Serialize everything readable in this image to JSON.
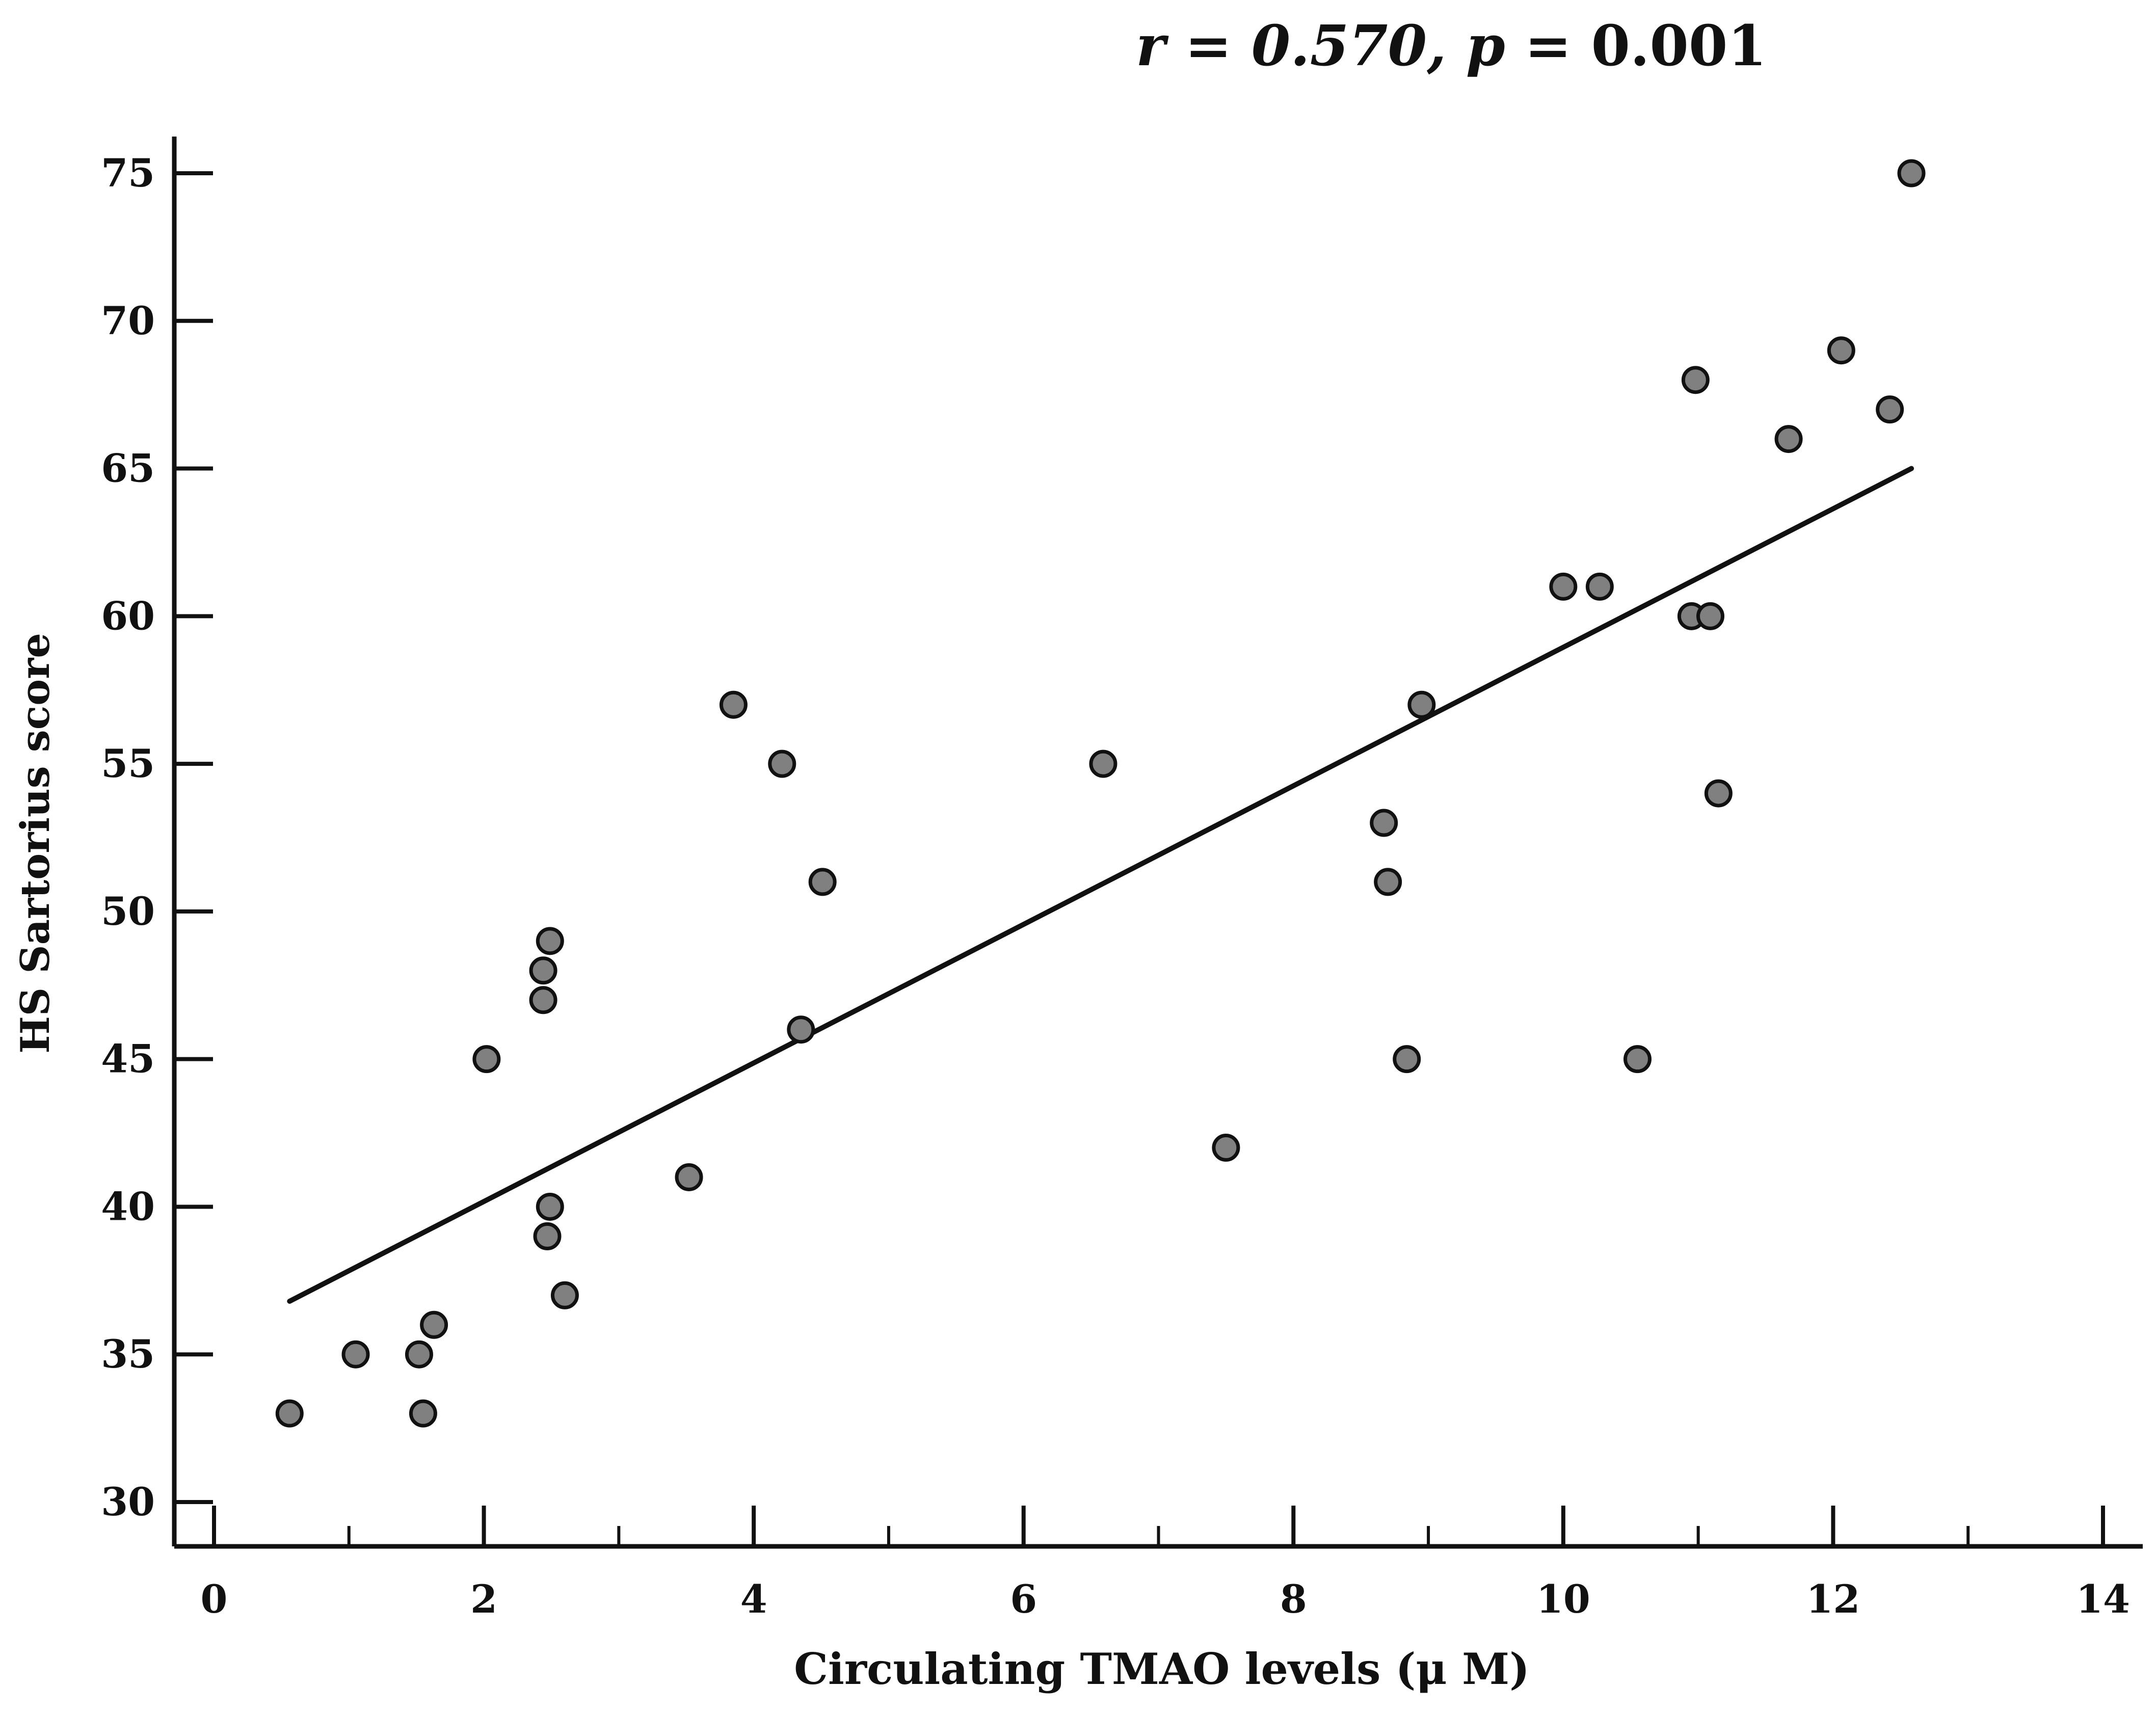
{
  "chart_data": {
    "type": "scatter",
    "title": "",
    "stats": {
      "r_label": "r",
      "r_value": "0.570",
      "p_label": "p",
      "p_value": "0.001"
    },
    "xlabel": "Circulating TMAO levels (μ M)",
    "ylabel": "HS Sartorius score",
    "xlim": [
      0,
      14
    ],
    "ylim": [
      30,
      75
    ],
    "x_ticks": [
      0,
      2,
      4,
      6,
      8,
      10,
      12,
      14
    ],
    "x_minor_ticks": [
      1,
      3,
      5,
      7,
      9,
      11,
      13
    ],
    "y_ticks": [
      30,
      35,
      40,
      45,
      50,
      55,
      60,
      65,
      70,
      75
    ],
    "points": [
      {
        "x": 0.56,
        "y": 33
      },
      {
        "x": 1.05,
        "y": 35
      },
      {
        "x": 1.52,
        "y": 35
      },
      {
        "x": 1.55,
        "y": 33
      },
      {
        "x": 1.63,
        "y": 36
      },
      {
        "x": 2.02,
        "y": 45
      },
      {
        "x": 2.44,
        "y": 48
      },
      {
        "x": 2.44,
        "y": 47
      },
      {
        "x": 2.49,
        "y": 49
      },
      {
        "x": 2.49,
        "y": 40
      },
      {
        "x": 2.47,
        "y": 39
      },
      {
        "x": 2.6,
        "y": 37
      },
      {
        "x": 3.52,
        "y": 41
      },
      {
        "x": 3.85,
        "y": 57
      },
      {
        "x": 4.21,
        "y": 55
      },
      {
        "x": 4.35,
        "y": 46
      },
      {
        "x": 4.51,
        "y": 51
      },
      {
        "x": 6.59,
        "y": 55
      },
      {
        "x": 7.5,
        "y": 42
      },
      {
        "x": 8.67,
        "y": 53
      },
      {
        "x": 8.7,
        "y": 51
      },
      {
        "x": 8.84,
        "y": 45
      },
      {
        "x": 8.95,
        "y": 57
      },
      {
        "x": 10.0,
        "y": 61
      },
      {
        "x": 10.27,
        "y": 61
      },
      {
        "x": 10.55,
        "y": 45
      },
      {
        "x": 10.95,
        "y": 60
      },
      {
        "x": 10.98,
        "y": 68
      },
      {
        "x": 11.09,
        "y": 60
      },
      {
        "x": 11.15,
        "y": 54
      },
      {
        "x": 11.67,
        "y": 66
      },
      {
        "x": 12.06,
        "y": 69
      },
      {
        "x": 12.42,
        "y": 67
      },
      {
        "x": 12.58,
        "y": 75
      }
    ],
    "fit_line": {
      "x": [
        0.56,
        12.58
      ],
      "y": [
        36.8,
        65.0
      ]
    },
    "grid": false,
    "colors": {
      "marker_fill": "#808080",
      "marker_stroke": "#111111",
      "axis": "#111111",
      "line": "#111111",
      "background": "#ffffff"
    }
  }
}
